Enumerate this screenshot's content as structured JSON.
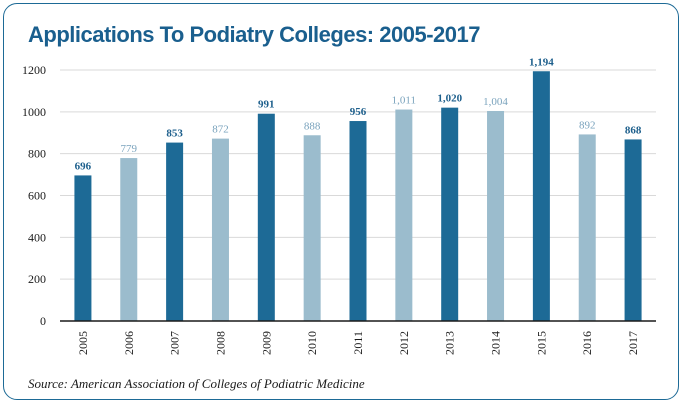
{
  "title": "Applications To Podiatry Colleges: 2005-2017",
  "source": "Source: American Association of Colleges of Podiatric Medicine",
  "colors": {
    "dark_bar": "#1d6a96",
    "light_bar": "#9bbccd",
    "dark_label": "#1d5f8c",
    "light_label": "#7aa3bd",
    "frame": "#1d6a96",
    "title": "#1a5f8e"
  },
  "chart_data": {
    "type": "bar",
    "categories": [
      "2005",
      "2006",
      "2007",
      "2008",
      "2009",
      "2010",
      "2011",
      "2012",
      "2013",
      "2014",
      "2015",
      "2016",
      "2017"
    ],
    "values": [
      696,
      779,
      853,
      872,
      991,
      888,
      956,
      1011,
      1020,
      1004,
      1194,
      892,
      868
    ],
    "data_labels": [
      "696",
      "779",
      "853",
      "872",
      "991",
      "888",
      "956",
      "1,011",
      "1,020",
      "1,004",
      "1,194",
      "892",
      "868"
    ],
    "bar_shades": [
      "dark",
      "light",
      "dark",
      "light",
      "dark",
      "light",
      "dark",
      "light",
      "dark",
      "light",
      "dark",
      "light",
      "dark"
    ],
    "yticks": [
      0,
      200,
      400,
      600,
      800,
      1000,
      1200
    ],
    "ylim": [
      0,
      1200
    ],
    "grid": true,
    "legend": "none",
    "xlabel": "",
    "ylabel": ""
  }
}
